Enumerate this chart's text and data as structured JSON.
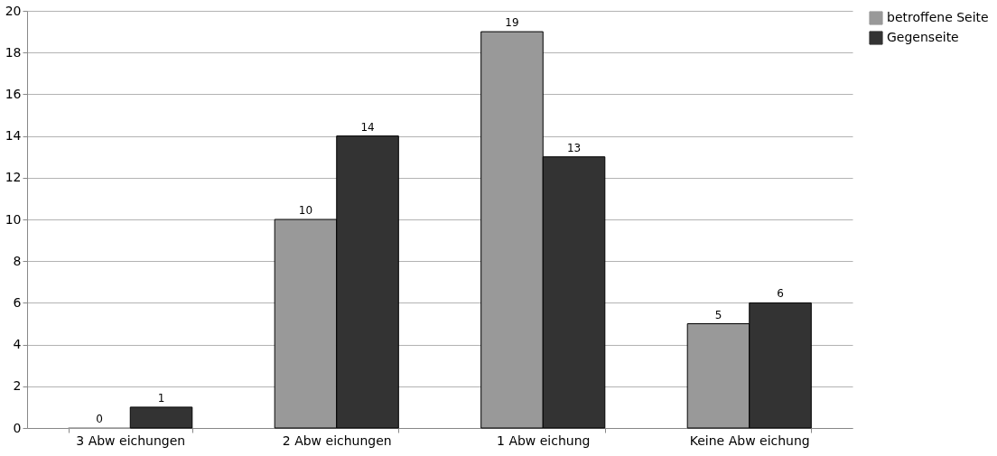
{
  "chart_data": {
    "type": "bar",
    "categories": [
      "3 Abw eichungen",
      "2 Abw eichungen",
      "1 Abw eichung",
      "Keine Abw eichung"
    ],
    "series": [
      {
        "name": "betroffene Seite",
        "color": "#999999",
        "values": [
          0,
          10,
          19,
          5
        ]
      },
      {
        "name": "Gegenseite",
        "color": "#333333",
        "values": [
          1,
          14,
          13,
          6
        ]
      }
    ],
    "ylim": [
      0,
      20
    ],
    "yticks": [
      0,
      2,
      4,
      6,
      8,
      10,
      12,
      14,
      16,
      18,
      20
    ],
    "grid": "y",
    "legend": "right",
    "data_labels": true
  }
}
